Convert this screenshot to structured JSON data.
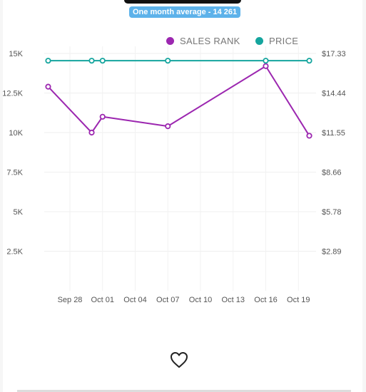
{
  "badge": {
    "text": "One month average - 14 261",
    "color": "#5db2ea"
  },
  "legend": [
    {
      "label": "SALES RANK",
      "color": "#9c27b0"
    },
    {
      "label": "PRICE",
      "color": "#15a59e"
    }
  ],
  "chart_data": {
    "type": "line",
    "x_ticks": [
      "Sep 28",
      "Oct 01",
      "Oct 04",
      "Oct 07",
      "Oct 10",
      "Oct 13",
      "Oct 16",
      "Oct 19"
    ],
    "y_left_ticks": [
      "2.5K",
      "5K",
      "7.5K",
      "10K",
      "12.5K",
      "15K"
    ],
    "y_right_ticks": [
      "$2.89",
      "$5.78",
      "$8.66",
      "$11.55",
      "$14.44",
      "$17.33"
    ],
    "y_left_range": [
      0,
      15000
    ],
    "y_right_range": [
      0,
      17.33
    ],
    "grid": true,
    "legend_position": "top-right",
    "series": [
      {
        "name": "SALES RANK",
        "axis": "left",
        "color": "#9c27b0",
        "points": [
          {
            "x": "Sep 26",
            "y": 12900
          },
          {
            "x": "Sep 30",
            "y": 10000
          },
          {
            "x": "Oct 01",
            "y": 11000
          },
          {
            "x": "Oct 07",
            "y": 10400
          },
          {
            "x": "Oct 16",
            "y": 14200
          },
          {
            "x": "Oct 20",
            "y": 9800
          }
        ]
      },
      {
        "name": "PRICE",
        "axis": "right",
        "color": "#15a59e",
        "points": [
          {
            "x": "Sep 26",
            "y": 16.8
          },
          {
            "x": "Sep 30",
            "y": 16.8
          },
          {
            "x": "Oct 01",
            "y": 16.8
          },
          {
            "x": "Oct 07",
            "y": 16.8
          },
          {
            "x": "Oct 16",
            "y": 16.8
          },
          {
            "x": "Oct 20",
            "y": 16.8
          }
        ]
      }
    ]
  },
  "favorite_icon": "heart-outline-icon"
}
